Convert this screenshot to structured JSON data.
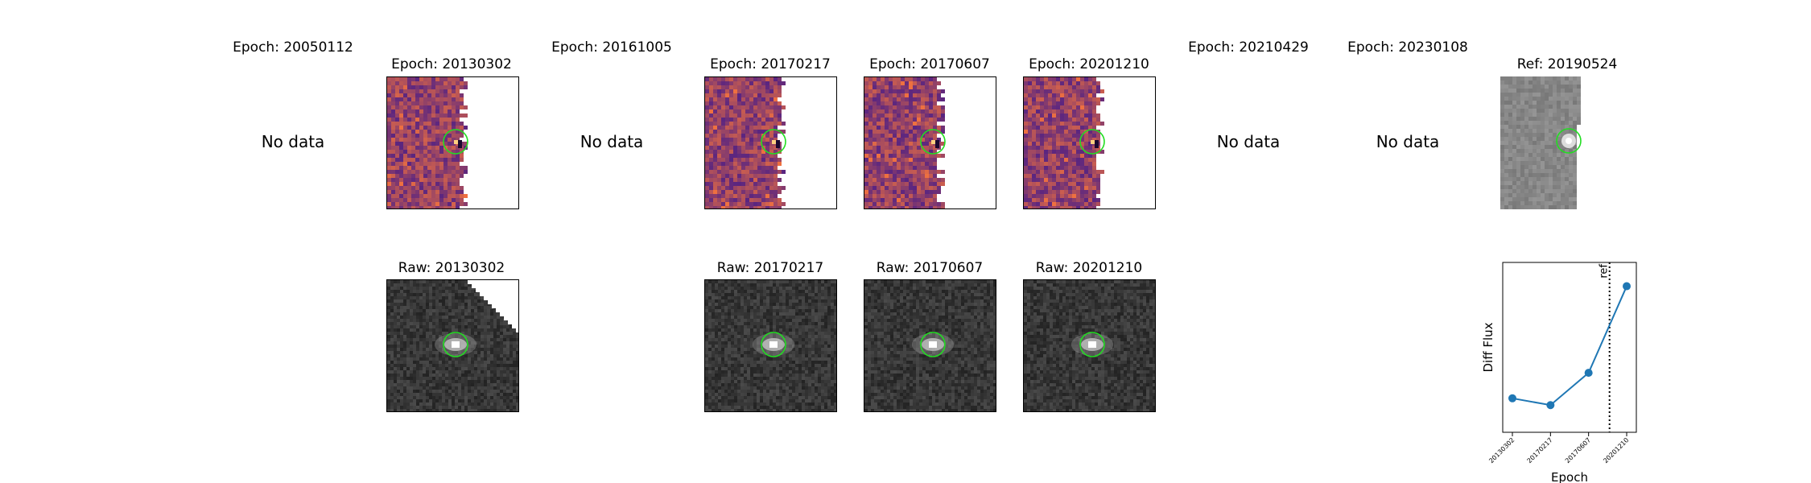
{
  "epochs_row": [
    {
      "label": "Epoch: 20050112",
      "status": "No data"
    },
    {
      "label": "Epoch: 20130302",
      "status": "image"
    },
    {
      "label": "Epoch: 20161005",
      "status": "No data"
    },
    {
      "label": "Epoch: 20170217",
      "status": "image"
    },
    {
      "label": "Epoch: 20170607",
      "status": "image"
    },
    {
      "label": "Epoch: 20201210",
      "status": "image"
    },
    {
      "label": "Epoch: 20210429",
      "status": "No data"
    },
    {
      "label": "Epoch: 20230108",
      "status": "No data"
    }
  ],
  "reference": {
    "label": "Ref: 20190524"
  },
  "raw_row": [
    {
      "label": "Raw: 20130302"
    },
    {
      "label": "Raw: 20170217"
    },
    {
      "label": "Raw: 20170607"
    },
    {
      "label": "Raw: 20201210"
    }
  ],
  "colors": {
    "circle": "#22dd22",
    "line": "#1f77b4",
    "diff_low": "#5a2580",
    "diff_high": "#ee7040",
    "raw_bg": "#333333"
  },
  "chart_data": {
    "type": "line",
    "x": [
      "20130302",
      "20170217",
      "20170607",
      "20201210"
    ],
    "values": [
      0.2,
      0.16,
      0.35,
      0.86
    ],
    "ylabel": "Diff Flux",
    "xlabel": "Epoch",
    "ylim": [
      0.0,
      1.0
    ],
    "reference_line": {
      "label": "ref",
      "date": "20190524"
    },
    "grid": false
  }
}
